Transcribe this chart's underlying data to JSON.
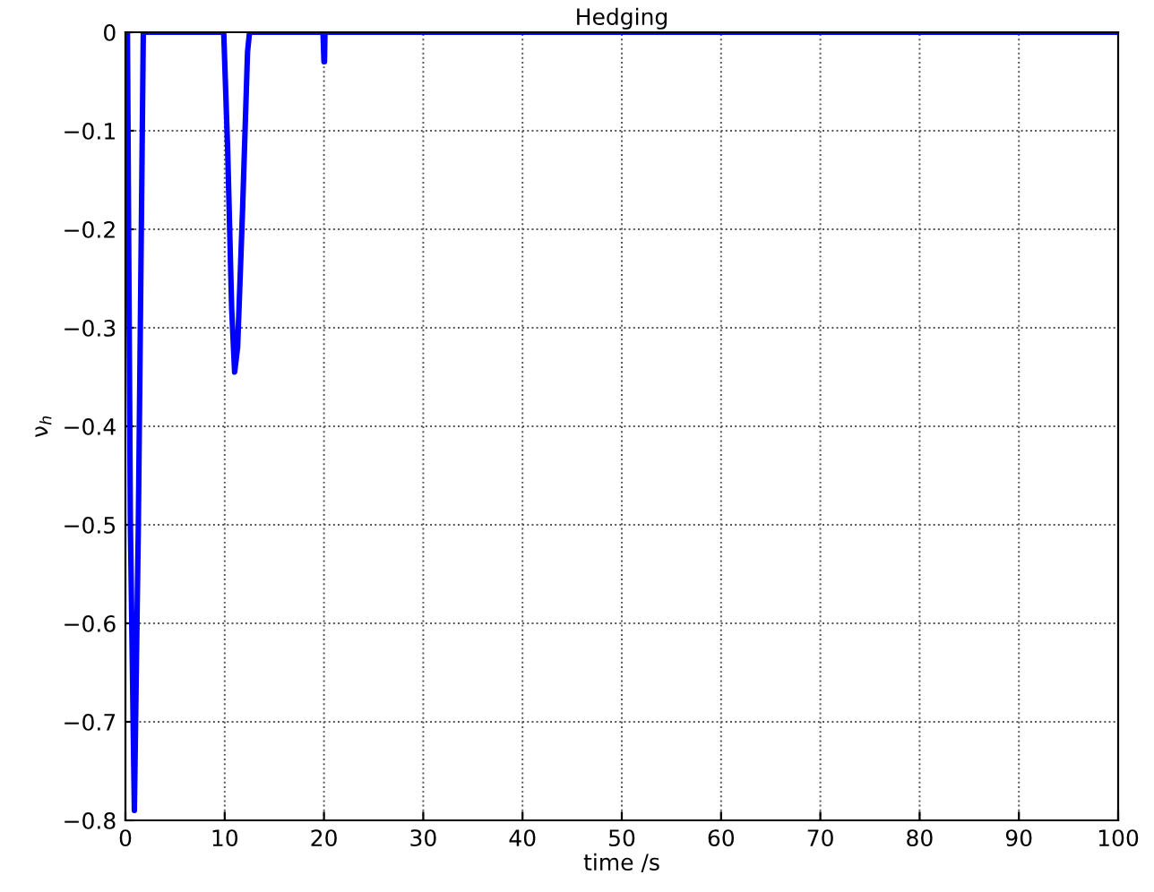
{
  "chart_data": {
    "type": "line",
    "title": "Hedging",
    "xlabel": "time /s",
    "ylabel": "ν$_{h}$",
    "x": [
      0,
      0.2,
      0.5,
      0.9,
      1.3,
      1.8,
      2.0,
      9.9,
      10.3,
      10.7,
      11.0,
      11.3,
      11.8,
      12.3,
      12.5,
      19.9,
      20.0,
      20.05,
      20.1,
      20.2,
      100
    ],
    "series": [
      {
        "color": "#0000ff",
        "values": [
          0,
          0,
          -0.5,
          -0.79,
          -0.5,
          0,
          0,
          0,
          -0.12,
          -0.28,
          -0.345,
          -0.32,
          -0.18,
          -0.02,
          0,
          0,
          -0.03,
          -0.03,
          0,
          0,
          0
        ]
      }
    ],
    "xlim": [
      0,
      100
    ],
    "ylim": [
      -0.8,
      0
    ],
    "xticks": [
      0,
      10,
      20,
      30,
      40,
      50,
      60,
      70,
      80,
      90,
      100
    ],
    "yticks": [
      -0.8,
      -0.7,
      -0.6,
      -0.5,
      -0.4,
      -0.3,
      -0.2,
      -0.1,
      0
    ],
    "grid": true,
    "line_style": "solid",
    "marker": "none",
    "legend": false
  }
}
